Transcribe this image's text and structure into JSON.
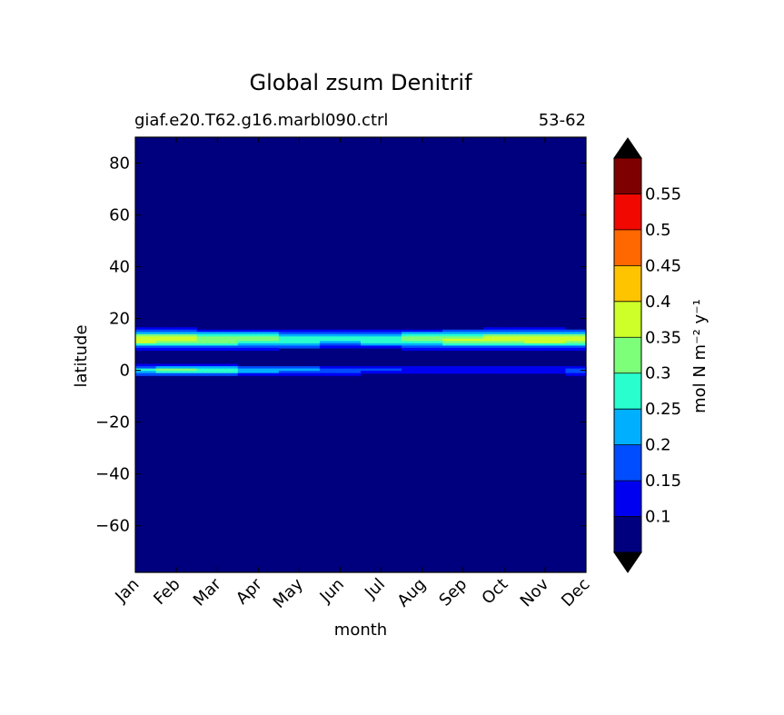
{
  "chart_data": {
    "type": "heatmap",
    "title": "Global zsum Denitrif",
    "subtitle_left": "giaf.e20.T62.g16.marbl090.ctrl",
    "subtitle_right": "53-62",
    "xlabel": "month",
    "ylabel": "latitude",
    "x_ticks": [
      "Jan",
      "Feb",
      "Mar",
      "Apr",
      "May",
      "Jun",
      "Jul",
      "Aug",
      "Sep",
      "Oct",
      "Nov",
      "Dec"
    ],
    "y_ticks": [
      80,
      60,
      40,
      20,
      0,
      -20,
      -40,
      -60
    ],
    "ylim": [
      -78,
      90
    ],
    "colorbar": {
      "label": "mol N m⁻² y⁻¹",
      "levels": [
        0.05,
        0.1,
        0.15,
        0.2,
        0.25,
        0.3,
        0.35,
        0.4,
        0.45,
        0.5,
        0.55,
        0.6
      ],
      "tick_labels": [
        "0.1",
        "0.15",
        "0.2",
        "0.25",
        "0.3",
        "0.35",
        "0.4",
        "0.45",
        "0.5",
        "0.55"
      ],
      "colors": [
        "#00007f",
        "#0000f1",
        "#004cff",
        "#00b0ff",
        "#29ffce",
        "#7dff7a",
        "#ceff29",
        "#ffc400",
        "#ff6800",
        "#f10800",
        "#7f0000"
      ],
      "under_color": "#000000",
      "over_color": "#000000"
    },
    "features": [
      {
        "name": "north band",
        "lat_range": [
          6,
          18
        ],
        "peak_latitude": 12,
        "peak_value": 0.37,
        "peak_months": [
          "Jan",
          "Feb",
          "Oct",
          "Nov"
        ]
      },
      {
        "name": "equatorial band",
        "lat_range": [
          -3,
          3
        ],
        "peak_latitude": 0,
        "peak_value": 0.3,
        "peak_months": [
          "Feb"
        ]
      }
    ]
  }
}
